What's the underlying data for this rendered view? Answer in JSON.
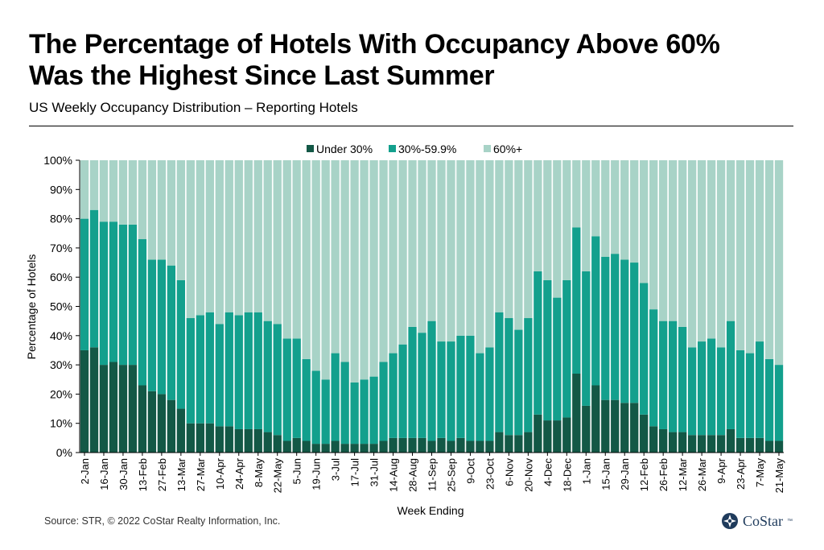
{
  "header": {
    "title_line1": "The Percentage of Hotels With Occupancy Above 60%",
    "title_line2": "Was the Highest Since Last Summer",
    "subtitle": "US Weekly Occupancy Distribution – Reporting Hotels"
  },
  "footer": {
    "source": "Source: STR, © 2022  CoStar Realty Information, Inc.",
    "logo_text": "CoStar",
    "logo_tm": "™"
  },
  "colors": {
    "under30": "#135846",
    "mid": "#13a08d",
    "over60": "#a8d3c7",
    "axis": "#000000"
  },
  "chart_data": {
    "type": "bar",
    "stacked": true,
    "title": "US Weekly Occupancy Distribution – Reporting Hotels",
    "xlabel": "Week Ending",
    "ylabel": "Percentage of Hotels",
    "ylim": [
      0,
      100
    ],
    "yticks": [
      "0%",
      "10%",
      "20%",
      "30%",
      "40%",
      "50%",
      "60%",
      "70%",
      "80%",
      "90%",
      "100%"
    ],
    "legend": [
      "Under 30%",
      "30%-59.9%",
      "60%+"
    ],
    "legend_position": "top-center",
    "x_tick_labels": [
      "2-Jan",
      "16-Jan",
      "30-Jan",
      "13-Feb",
      "27-Feb",
      "13-Mar",
      "27-Mar",
      "10-Apr",
      "24-Apr",
      "8-May",
      "22-May",
      "5-Jun",
      "19-Jun",
      "3-Jul",
      "17-Jul",
      "31-Jul",
      "14-Aug",
      "28-Aug",
      "11-Sep",
      "25-Sep",
      "9-Oct",
      "23-Oct",
      "6-Nov",
      "20-Nov",
      "4-Dec",
      "18-Dec",
      "1-Jan",
      "15-Jan",
      "29-Jan",
      "12-Feb",
      "26-Feb",
      "12-Mar",
      "26-Mar",
      "9-Apr",
      "23-Apr",
      "7-May",
      "21-May"
    ],
    "series": [
      {
        "name": "Under 30%",
        "values": [
          35,
          36,
          30,
          31,
          30,
          30,
          23,
          21,
          20,
          18,
          15,
          10,
          10,
          10,
          9,
          9,
          8,
          8,
          8,
          7,
          6,
          4,
          5,
          4,
          3,
          3,
          4,
          3,
          3,
          3,
          3,
          4,
          5,
          5,
          5,
          5,
          4,
          5,
          4,
          5,
          4,
          4,
          4,
          7,
          6,
          6,
          7,
          13,
          11,
          11,
          12,
          27,
          16,
          23,
          18,
          18,
          17,
          17,
          13,
          9,
          8,
          7,
          7,
          6,
          6,
          6,
          6,
          8,
          5,
          5,
          5,
          4,
          4
        ]
      },
      {
        "name": "30%-59.9%",
        "values": [
          45,
          47,
          49,
          48,
          48,
          48,
          50,
          45,
          46,
          46,
          44,
          36,
          37,
          38,
          35,
          39,
          39,
          40,
          40,
          38,
          38,
          35,
          34,
          28,
          25,
          22,
          30,
          28,
          21,
          22,
          23,
          27,
          29,
          32,
          38,
          36,
          41,
          33,
          34,
          35,
          36,
          30,
          32,
          41,
          40,
          36,
          39,
          49,
          48,
          42,
          47,
          50,
          46,
          51,
          49,
          50,
          49,
          48,
          45,
          40,
          37,
          38,
          36,
          30,
          32,
          33,
          30,
          37,
          30,
          29,
          33,
          28,
          26
        ]
      },
      {
        "name": "60%+",
        "values": [
          20,
          17,
          21,
          21,
          22,
          22,
          27,
          34,
          34,
          36,
          41,
          54,
          53,
          52,
          56,
          52,
          53,
          52,
          52,
          55,
          56,
          61,
          61,
          68,
          72,
          75,
          66,
          69,
          76,
          75,
          74,
          69,
          66,
          63,
          57,
          59,
          55,
          62,
          62,
          60,
          60,
          66,
          64,
          52,
          54,
          58,
          54,
          38,
          41,
          47,
          41,
          23,
          38,
          26,
          33,
          32,
          34,
          35,
          42,
          51,
          55,
          55,
          57,
          64,
          62,
          61,
          64,
          55,
          65,
          66,
          62,
          68,
          70
        ]
      }
    ]
  }
}
